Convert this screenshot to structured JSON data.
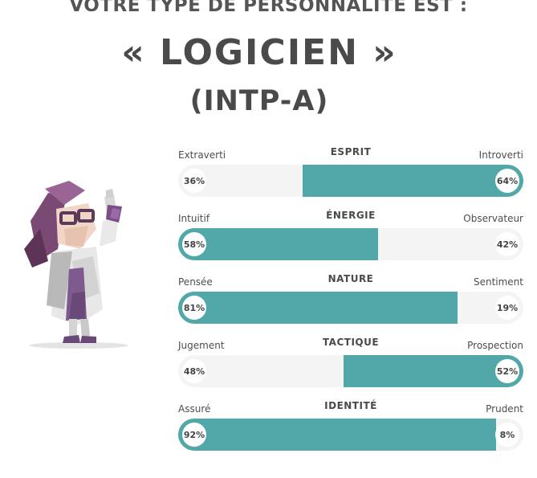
{
  "header": {
    "headline": "VOTRE TYPE DE PERSONNALITÉ EST :",
    "type_name": "« LOGICIEN »",
    "type_code": "(INTP-A)"
  },
  "colors": {
    "accent": "#52a8a8",
    "track": "#f4f4f4",
    "text": "#4d4d4d"
  },
  "illustration": {
    "icon": "scientist-character-icon"
  },
  "scales": [
    {
      "title": "ESPRIT",
      "left_label": "Extraverti",
      "right_label": "Introverti",
      "left_pct": "36%",
      "right_pct": "64%",
      "dominant_value": 64,
      "dominant": "right"
    },
    {
      "title": "ÉNERGIE",
      "left_label": "Intuitif",
      "right_label": "Observateur",
      "left_pct": "58%",
      "right_pct": "42%",
      "dominant_value": 58,
      "dominant": "left"
    },
    {
      "title": "NATURE",
      "left_label": "Pensée",
      "right_label": "Sentiment",
      "left_pct": "81%",
      "right_pct": "19%",
      "dominant_value": 81,
      "dominant": "left"
    },
    {
      "title": "TACTIQUE",
      "left_label": "Jugement",
      "right_label": "Prospection",
      "left_pct": "48%",
      "right_pct": "52%",
      "dominant_value": 52,
      "dominant": "right"
    },
    {
      "title": "IDENTITÉ",
      "left_label": "Assuré",
      "right_label": "Prudent",
      "left_pct": "92%",
      "right_pct": "8%",
      "dominant_value": 92,
      "dominant": "left"
    }
  ]
}
